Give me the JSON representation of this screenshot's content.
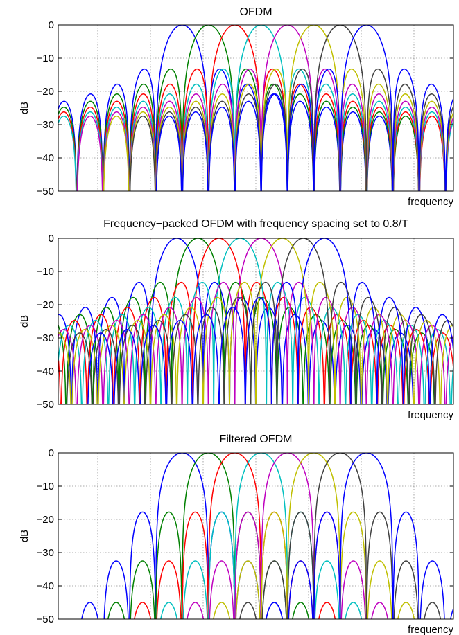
{
  "chart_data": [
    {
      "type": "line",
      "title": "OFDM",
      "xlabel": "frequency",
      "ylabel": "dB",
      "ylim": [
        -50,
        0
      ],
      "yticks": [
        0,
        -10,
        -20,
        -30,
        -40,
        -50
      ],
      "yticklabels": [
        "0",
        "−10",
        "−20",
        "−30",
        "−40",
        "−50"
      ],
      "xlim": [
        -7.5,
        7.5
      ],
      "xgrid": [
        -6,
        -4,
        -2,
        0,
        2,
        4,
        6
      ],
      "grid": true,
      "spectrum": {
        "shape": "sinc",
        "db_floor": -50,
        "span": 8
      },
      "series": [
        {
          "color": "#0000ff",
          "center": -2.8
        },
        {
          "color": "#008000",
          "center": -1.8
        },
        {
          "color": "#ff0000",
          "center": -0.8
        },
        {
          "color": "#00bfbf",
          "center": 0.2
        },
        {
          "color": "#bf00bf",
          "center": 1.2
        },
        {
          "color": "#bfbf00",
          "center": 2.2
        },
        {
          "color": "#404040",
          "center": 3.2
        },
        {
          "color": "#0000ff",
          "center": 4.2
        }
      ]
    },
    {
      "type": "line",
      "title": "Frequency−packed OFDM with frequency spacing set to 0.8/T",
      "xlabel": "frequency",
      "ylabel": "dB",
      "ylim": [
        -50,
        0
      ],
      "yticks": [
        0,
        -10,
        -20,
        -30,
        -40,
        -50
      ],
      "yticklabels": [
        "0",
        "−10",
        "−20",
        "−30",
        "−40",
        "−50"
      ],
      "xlim": [
        -7.5,
        7.5
      ],
      "xgrid": [
        -6,
        -4,
        -2,
        0,
        2,
        4,
        6
      ],
      "grid": true,
      "spectrum": {
        "shape": "sinc",
        "db_floor": -50,
        "span": 9
      },
      "series": [
        {
          "color": "#0000ff",
          "center": -3.0
        },
        {
          "color": "#008000",
          "center": -2.2
        },
        {
          "color": "#ff0000",
          "center": -1.4
        },
        {
          "color": "#00bfbf",
          "center": -0.6
        },
        {
          "color": "#bf00bf",
          "center": 0.2
        },
        {
          "color": "#bfbf00",
          "center": 1.0
        },
        {
          "color": "#404040",
          "center": 1.8
        },
        {
          "color": "#0000ff",
          "center": 2.6
        }
      ]
    },
    {
      "type": "line",
      "title": "Filtered OFDM",
      "xlabel": "frequency",
      "ylabel": "dB",
      "ylim": [
        -50,
        0
      ],
      "yticks": [
        0,
        -10,
        -20,
        -30,
        -40,
        -50
      ],
      "yticklabels": [
        "0",
        "−10",
        "−20",
        "−30",
        "−40",
        "−50"
      ],
      "xlim": [
        -7.5,
        7.5
      ],
      "xgrid": [
        -6,
        -4,
        -2,
        0,
        2,
        4,
        6
      ],
      "grid": true,
      "spectrum": {
        "shape": "filtered",
        "db_floor": -50,
        "span": 5.5,
        "sidelobe_levels_db": [
          -17.8,
          -32.5,
          -45
        ]
      },
      "series": [
        {
          "color": "#0000ff",
          "center": -2.8
        },
        {
          "color": "#008000",
          "center": -1.8
        },
        {
          "color": "#ff0000",
          "center": -0.8
        },
        {
          "color": "#00bfbf",
          "center": 0.2
        },
        {
          "color": "#bf00bf",
          "center": 1.2
        },
        {
          "color": "#bfbf00",
          "center": 2.2
        },
        {
          "color": "#404040",
          "center": 3.2
        },
        {
          "color": "#0000ff",
          "center": 4.2
        }
      ]
    }
  ]
}
